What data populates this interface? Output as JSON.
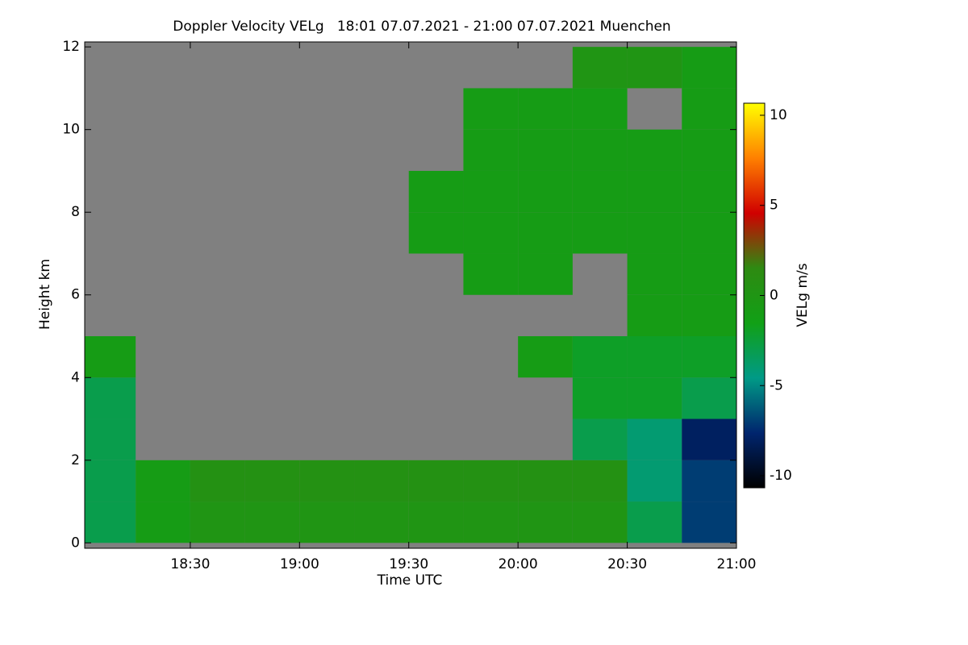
{
  "chart_data": {
    "type": "heatmap",
    "title": "Doppler Velocity VELg   18:01 07.07.2021 - 21:00 07.07.2021 Muenchen",
    "xlabel": "Time UTC",
    "ylabel": "Height km",
    "zlabel": "VELg m/s",
    "x": [
      18.125,
      18.375,
      18.625,
      18.875,
      19.125,
      19.375,
      19.625,
      19.875,
      20.125,
      20.375,
      20.625,
      20.875
    ],
    "y": [
      0.5,
      1.5,
      2.5,
      3.5,
      4.5,
      5.5,
      6.5,
      7.5,
      8.5,
      9.5,
      10.5,
      11.5
    ],
    "z": [
      [
        -3,
        -1,
        0,
        0,
        0,
        0,
        0,
        0,
        0,
        0,
        -3,
        -7
      ],
      [
        -3,
        -1,
        0.5,
        0.5,
        0.5,
        0.5,
        0.5,
        0.5,
        0.5,
        0.5,
        -4,
        -7
      ],
      [
        -3,
        null,
        null,
        null,
        null,
        null,
        null,
        null,
        null,
        -3,
        -4,
        -8
      ],
      [
        -3,
        null,
        null,
        null,
        null,
        null,
        null,
        null,
        null,
        -2,
        -2,
        -3
      ],
      [
        -1,
        null,
        null,
        null,
        null,
        null,
        null,
        null,
        -1,
        -2,
        -2,
        -2
      ],
      [
        null,
        null,
        null,
        null,
        null,
        null,
        null,
        null,
        null,
        null,
        -1,
        -1
      ],
      [
        null,
        null,
        null,
        null,
        null,
        null,
        null,
        -1,
        -1,
        null,
        -1,
        -1
      ],
      [
        null,
        null,
        null,
        null,
        null,
        null,
        -1,
        -1,
        -1,
        -1,
        -1,
        -1
      ],
      [
        null,
        null,
        null,
        null,
        null,
        null,
        -1,
        -1,
        -1,
        -1,
        -1,
        -1
      ],
      [
        null,
        null,
        null,
        null,
        null,
        null,
        null,
        -1,
        -1,
        -1,
        -1,
        -1
      ],
      [
        null,
        null,
        null,
        null,
        null,
        null,
        null,
        -1,
        -1,
        -1,
        null,
        -1
      ],
      [
        null,
        null,
        null,
        null,
        null,
        null,
        null,
        null,
        null,
        0,
        0,
        -1
      ]
    ],
    "xlim": [
      18.0167,
      21.0
    ],
    "xticks": [
      {
        "value": 18.5,
        "label": "18:30"
      },
      {
        "value": 19,
        "label": "19:00"
      },
      {
        "value": 19.5,
        "label": "19:30"
      },
      {
        "value": 20,
        "label": "20:00"
      },
      {
        "value": 20.5,
        "label": "20:30"
      },
      {
        "value": 21,
        "label": "21:00"
      }
    ],
    "ylim": [
      -0.13,
      12.12
    ],
    "yticks": [
      0,
      2,
      4,
      6,
      8,
      10,
      12
    ],
    "zlim": [
      -10.67,
      10.67
    ],
    "zticks": [
      -10,
      -5,
      0,
      5,
      10
    ],
    "nodata_color": "#808080",
    "colorscale": [
      "#000000",
      "#00256e",
      "#009a86",
      "#11a016",
      "#2e8a12",
      "#d00000",
      "#ff8000",
      "#ffff00"
    ]
  }
}
